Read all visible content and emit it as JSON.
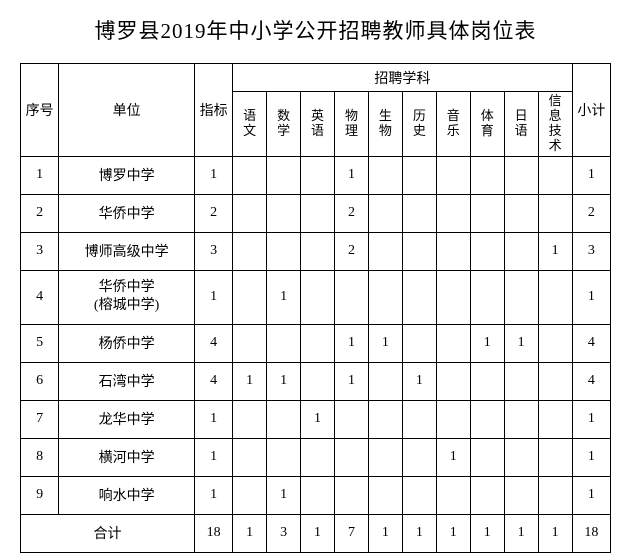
{
  "title": "博罗县2019年中小学公开招聘教师具体岗位表",
  "headers": {
    "seq": "序号",
    "unit": "单位",
    "quota": "指标",
    "subjectGroup": "招聘学科",
    "subtotal": "小计",
    "subjects": [
      "语文",
      "数学",
      "英语",
      "物理",
      "生物",
      "历史",
      "音乐",
      "体育",
      "日语",
      "信息技术"
    ]
  },
  "rows": [
    {
      "seq": "1",
      "unit": "博罗中学",
      "quota": "1",
      "s": [
        "",
        "",
        "",
        "1",
        "",
        "",
        "",
        "",
        "",
        ""
      ],
      "subtotal": "1"
    },
    {
      "seq": "2",
      "unit": "华侨中学",
      "quota": "2",
      "s": [
        "",
        "",
        "",
        "2",
        "",
        "",
        "",
        "",
        "",
        ""
      ],
      "subtotal": "2"
    },
    {
      "seq": "3",
      "unit": "博师高级中学",
      "quota": "3",
      "s": [
        "",
        "",
        "",
        "2",
        "",
        "",
        "",
        "",
        "",
        "1"
      ],
      "subtotal": "3"
    },
    {
      "seq": "4",
      "unit": "华侨中学\n(榕城中学)",
      "quota": "1",
      "s": [
        "",
        "1",
        "",
        "",
        "",
        "",
        "",
        "",
        "",
        ""
      ],
      "subtotal": "1",
      "multi": true
    },
    {
      "seq": "5",
      "unit": "杨侨中学",
      "quota": "4",
      "s": [
        "",
        "",
        "",
        "1",
        "1",
        "",
        "",
        "1",
        "1",
        ""
      ],
      "subtotal": "4"
    },
    {
      "seq": "6",
      "unit": "石湾中学",
      "quota": "4",
      "s": [
        "1",
        "1",
        "",
        "1",
        "",
        "1",
        "",
        "",
        "",
        ""
      ],
      "subtotal": "4"
    },
    {
      "seq": "7",
      "unit": "龙华中学",
      "quota": "1",
      "s": [
        "",
        "",
        "1",
        "",
        "",
        "",
        "",
        "",
        "",
        ""
      ],
      "subtotal": "1"
    },
    {
      "seq": "8",
      "unit": "横河中学",
      "quota": "1",
      "s": [
        "",
        "",
        "",
        "",
        "",
        "",
        "1",
        "",
        "",
        ""
      ],
      "subtotal": "1"
    },
    {
      "seq": "9",
      "unit": "响水中学",
      "quota": "1",
      "s": [
        "",
        "1",
        "",
        "",
        "",
        "",
        "",
        "",
        "",
        ""
      ],
      "subtotal": "1"
    }
  ],
  "total": {
    "label": "合计",
    "quota": "18",
    "s": [
      "1",
      "3",
      "1",
      "7",
      "1",
      "1",
      "1",
      "1",
      "1",
      "1"
    ],
    "subtotal": "18"
  }
}
